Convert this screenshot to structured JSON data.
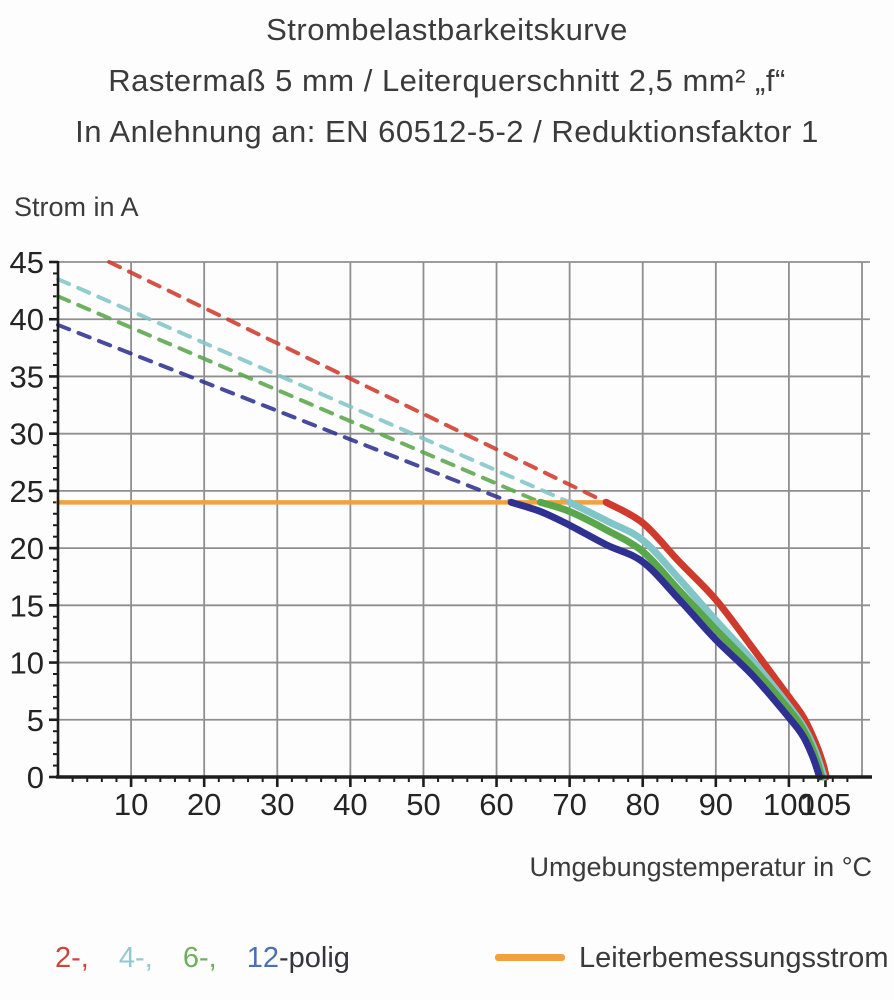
{
  "title": {
    "line1": "Strombelastbarkeitskurve",
    "line2": "Rastermaß 5 mm / Leiterquerschnitt 2,5 mm² „f“",
    "line3": "In Anlehnung an: EN 60512-5-2 / Reduktionsfaktor 1"
  },
  "legend": {
    "poles": [
      {
        "label": "2-,",
        "color": "#c9453d"
      },
      {
        "label": "4-,",
        "color": "#93c9ce"
      },
      {
        "label": "6-,",
        "color": "#6fae5c"
      },
      {
        "label": "12",
        "color": "#4a6fb5"
      }
    ],
    "suffix": "-polig",
    "rated": {
      "label": "Leiterbemessungsstrom",
      "color": "#efa23d"
    }
  },
  "chart_data": {
    "type": "line",
    "title": "Strombelastbarkeitskurve",
    "subtitle": "Rastermaß 5 mm / Leiterquerschnitt 2,5 mm² „f“ / In Anlehnung an: EN 60512-5-2 / Reduktionsfaktor 1",
    "xlabel": "Umgebungstemperatur in °C",
    "ylabel": "Strom in A",
    "xlim": [
      0,
      110
    ],
    "ylim": [
      0,
      45
    ],
    "grid": true,
    "grid_color": "#8f8f8f",
    "axis_color": "#1d1d1d",
    "tick_label_color": "#242424",
    "x_major_ticks": [
      10,
      20,
      30,
      40,
      50,
      60,
      70,
      80,
      90,
      100,
      105
    ],
    "x_minor_step": 2,
    "x_grid_step": 10,
    "y_major_ticks": [
      0,
      5,
      10,
      15,
      20,
      25,
      30,
      35,
      40,
      45
    ],
    "y_minor_step": 1,
    "y_grid_step": 5,
    "rated_current": {
      "label": "Leiterbemessungsstrom",
      "value_amps": 24,
      "x_start": 0,
      "x_end": 75.3,
      "color": "#efa23d"
    },
    "series": [
      {
        "name": "2-polig",
        "color": "#cf3a2c",
        "dashed_derating_line": [
          [
            7,
            45
          ],
          [
            75,
            24
          ]
        ],
        "solid_curve": [
          [
            75,
            24
          ],
          [
            80,
            22.2
          ],
          [
            85,
            18.8
          ],
          [
            90,
            15.5
          ],
          [
            95,
            11.3
          ],
          [
            100,
            7.0
          ],
          [
            102,
            5.2
          ],
          [
            103.5,
            3.2
          ],
          [
            104.6,
            1.3
          ],
          [
            105.1,
            0
          ]
        ]
      },
      {
        "name": "4-polig",
        "color": "#82c5c8",
        "dashed_derating_line": [
          [
            0,
            43.5
          ],
          [
            70,
            24
          ]
        ],
        "solid_curve": [
          [
            70,
            24
          ],
          [
            75,
            22.4
          ],
          [
            80,
            20.7
          ],
          [
            85,
            17.3
          ],
          [
            90,
            13.7
          ],
          [
            95,
            10.2
          ],
          [
            100,
            6.2
          ],
          [
            102,
            4.4
          ],
          [
            103.6,
            2.3
          ],
          [
            104.8,
            0
          ]
        ]
      },
      {
        "name": "6-polig",
        "color": "#5aa74b",
        "dashed_derating_line": [
          [
            0,
            42
          ],
          [
            66,
            24
          ]
        ],
        "solid_curve": [
          [
            66,
            24
          ],
          [
            70,
            23.2
          ],
          [
            75,
            21.6
          ],
          [
            80,
            19.7
          ],
          [
            85,
            16.3
          ],
          [
            90,
            12.9
          ],
          [
            95,
            9.6
          ],
          [
            100,
            5.9
          ],
          [
            102,
            4.1
          ],
          [
            103.5,
            2.0
          ],
          [
            104.5,
            0
          ]
        ]
      },
      {
        "name": "12-polig",
        "color": "#2e3192",
        "dashed_derating_line": [
          [
            0,
            39.5
          ],
          [
            62,
            24
          ]
        ],
        "solid_curve": [
          [
            62,
            24
          ],
          [
            66,
            23.2
          ],
          [
            70,
            22.0
          ],
          [
            75,
            20.3
          ],
          [
            80,
            18.8
          ],
          [
            85,
            15.5
          ],
          [
            90,
            12.0
          ],
          [
            95,
            8.9
          ],
          [
            100,
            5.2
          ],
          [
            102,
            3.5
          ],
          [
            103.3,
            1.7
          ],
          [
            104.2,
            0
          ]
        ]
      }
    ]
  }
}
